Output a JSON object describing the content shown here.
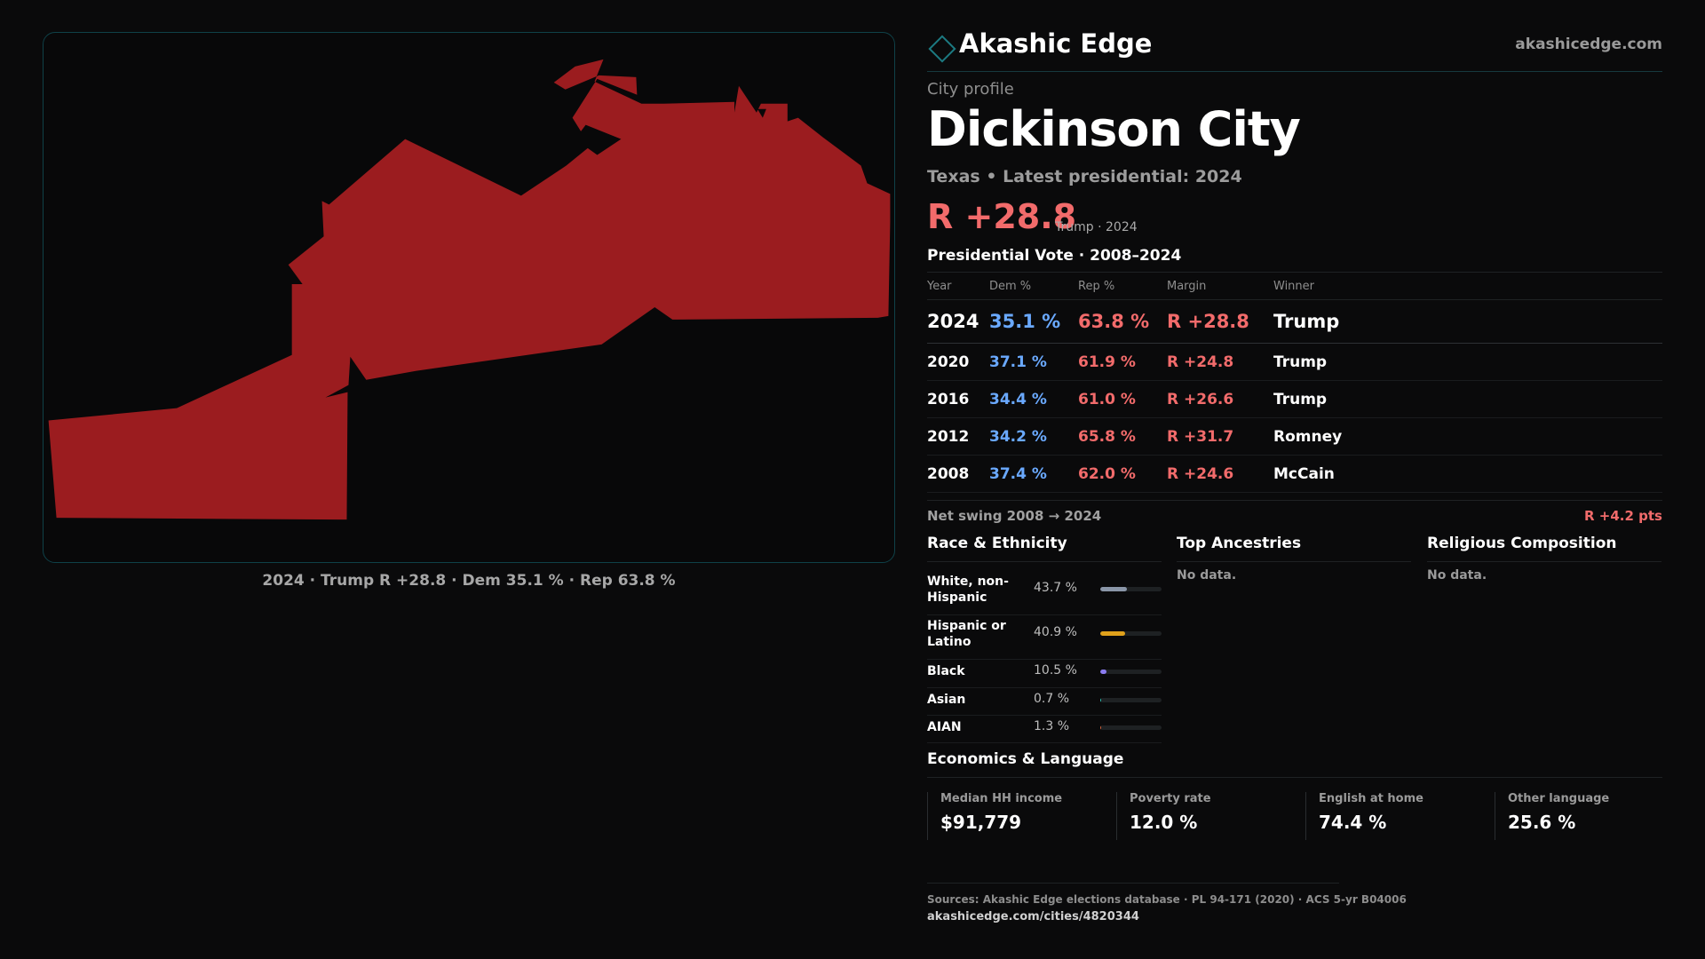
{
  "map": {
    "fill_color": "#9b1c1f",
    "caption": "2024 · Trump R +28.8 · Dem 35.1 % · Rep 63.8 %"
  },
  "header": {
    "brand": "Akashic Edge",
    "site": "akashicedge.com",
    "logo_icon": "diamond-outline-icon",
    "accent": "#1c7a82"
  },
  "profile": {
    "kicker": "City profile",
    "city": "Dickinson City",
    "subtitle": "Texas • Latest presidential: 2024",
    "margin": "R +28.8",
    "margin_note": "Trump · 2024"
  },
  "vote": {
    "title": "Presidential Vote · 2008–2024",
    "headers": [
      "Year",
      "Dem %",
      "Rep %",
      "Margin",
      "Winner"
    ],
    "rows": [
      {
        "year": "2024",
        "dem": "35.1 %",
        "rep": "63.8 %",
        "margin": "R +28.8",
        "winner": "Trump"
      },
      {
        "year": "2020",
        "dem": "37.1 %",
        "rep": "61.9 %",
        "margin": "R +24.8",
        "winner": "Trump"
      },
      {
        "year": "2016",
        "dem": "34.4 %",
        "rep": "61.0 %",
        "margin": "R +26.6",
        "winner": "Trump"
      },
      {
        "year": "2012",
        "dem": "34.2 %",
        "rep": "65.8 %",
        "margin": "R +31.7",
        "winner": "Romney"
      },
      {
        "year": "2008",
        "dem": "37.4 %",
        "rep": "62.0 %",
        "margin": "R +24.6",
        "winner": "McCain"
      }
    ],
    "swing_label": "Net swing 2008 → 2024",
    "swing_value": "R +4.2 pts"
  },
  "colors": {
    "dem": "#6aa9ff",
    "rep": "#f26b6b"
  },
  "race": {
    "title": "Race & Ethnicity",
    "rows": [
      {
        "label": "White, non-Hispanic",
        "pct": "43.7 %",
        "share": 0.437,
        "color": "#8a96a8"
      },
      {
        "label": "Hispanic or Latino",
        "pct": "40.9 %",
        "share": 0.409,
        "color": "#e0a11b"
      },
      {
        "label": "Black",
        "pct": "10.5 %",
        "share": 0.105,
        "color": "#8b7cf0"
      },
      {
        "label": "Asian",
        "pct": "0.7 %",
        "share": 0.007,
        "color": "#2ec4b6"
      },
      {
        "label": "AIAN",
        "pct": "1.3 %",
        "share": 0.013,
        "color": "#d9633a"
      }
    ]
  },
  "ancestries": {
    "title": "Top Ancestries",
    "empty": "No data."
  },
  "religion": {
    "title": "Religious Composition",
    "empty": "No data."
  },
  "economics": {
    "title": "Economics & Language",
    "cards": [
      {
        "label": "Median HH income",
        "value": "$91,779"
      },
      {
        "label": "Poverty rate",
        "value": "12.0 %"
      },
      {
        "label": "English at home",
        "value": "74.4 %"
      },
      {
        "label": "Other language",
        "value": "25.6 %"
      }
    ]
  },
  "footer": {
    "sources": "Sources: Akashic Edge elections database · PL 94-171 (2020) · ACS 5-yr B04006",
    "link": "akashicedge.com/cities/4820344"
  }
}
